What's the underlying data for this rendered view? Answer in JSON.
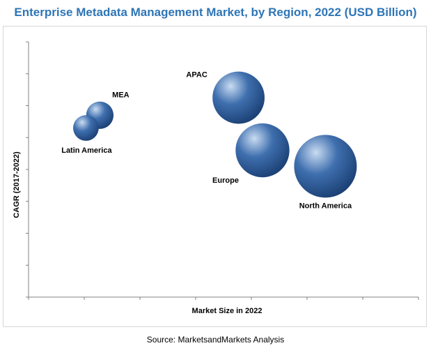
{
  "chart_data": {
    "type": "bubble",
    "title": "Enterprise Metadata Management Market, by Region, 2022 (USD Billion)",
    "xlabel": "Market Size in 2022",
    "ylabel": "CAGR (2017-2022)",
    "xlim": [
      0,
      7
    ],
    "ylim": [
      0,
      8
    ],
    "grid": false,
    "colors": {
      "bubble": "#3f6fae",
      "bubble_highlight": "#c9dcf2",
      "bubble_dark": "#1a3f73",
      "title": "#2e75b6"
    },
    "points": [
      {
        "label": "MEA",
        "x": 1.28,
        "y": 5.7,
        "size": 0.8
      },
      {
        "label": "Latin America",
        "x": 1.03,
        "y": 5.3,
        "size": 0.7
      },
      {
        "label": "APAC",
        "x": 3.77,
        "y": 6.25,
        "size": 2.9
      },
      {
        "label": "Europe",
        "x": 4.2,
        "y": 4.6,
        "size": 3.1
      },
      {
        "label": "North America",
        "x": 5.33,
        "y": 4.1,
        "size": 4.2
      }
    ]
  },
  "source": "Source: MarketsandMarkets Analysis"
}
